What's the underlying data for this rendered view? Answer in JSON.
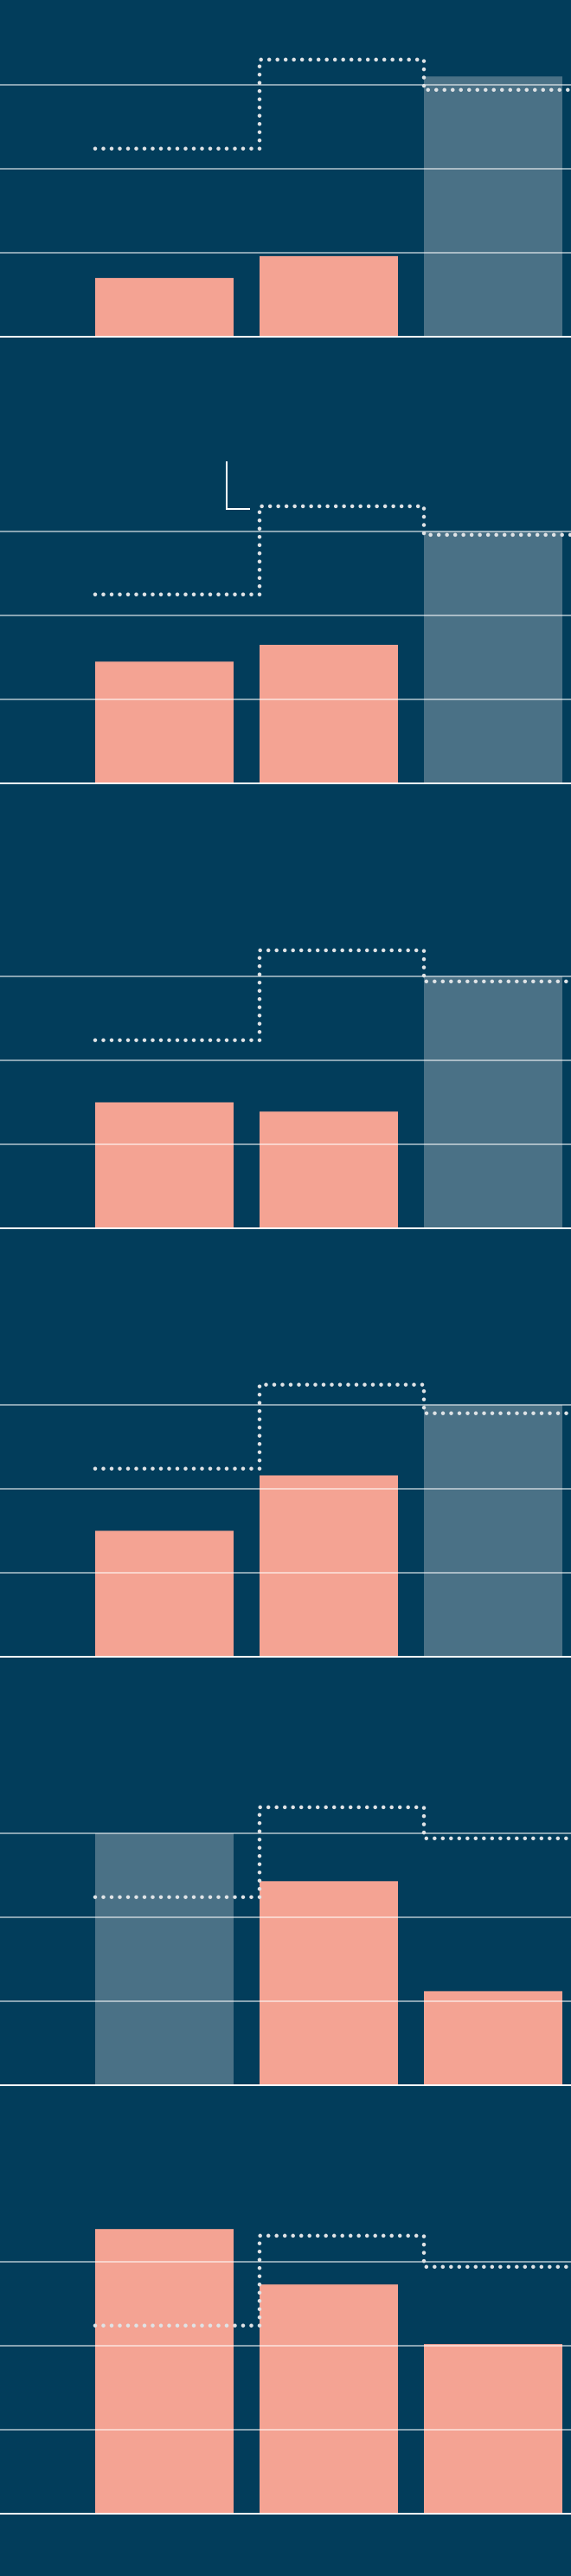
{
  "chart_data": [
    {
      "type": "bar",
      "categories": [
        null,
        null,
        null
      ],
      "ylim": [
        0,
        4
      ],
      "yticks": [
        0,
        1,
        2,
        3
      ],
      "grid": true,
      "series": [
        {
          "color": "#f4a393",
          "values": [
            0.7,
            0.96,
            null
          ]
        },
        {
          "color": "#4a7186",
          "values": [
            null,
            null,
            3.1
          ]
        },
        {
          "type": "step",
          "color": "#dfe3e6",
          "values": [
            2.24,
            3.3,
            2.94
          ]
        }
      ]
    },
    {
      "type": "bar",
      "categories": [
        null,
        null,
        null
      ],
      "ylim": [
        0,
        4
      ],
      "yticks": [
        0,
        1,
        2,
        3
      ],
      "grid": true,
      "series": [
        {
          "color": "#f4a393",
          "values": [
            1.45,
            1.65,
            null
          ]
        },
        {
          "color": "#4a7186",
          "values": [
            null,
            null,
            3.0
          ]
        },
        {
          "type": "step",
          "color": "#dfe3e6",
          "values": [
            2.25,
            3.3,
            2.96
          ]
        }
      ]
    },
    {
      "type": "bar",
      "categories": [
        null,
        null,
        null
      ],
      "ylim": [
        0,
        4
      ],
      "yticks": [
        0,
        1,
        2,
        3
      ],
      "grid": true,
      "series": [
        {
          "color": "#f4a393",
          "values": [
            1.5,
            1.39,
            null
          ]
        },
        {
          "color": "#4a7186",
          "values": [
            null,
            null,
            3.0
          ]
        },
        {
          "type": "step",
          "color": "#dfe3e6",
          "values": [
            2.24,
            3.31,
            2.94
          ]
        }
      ]
    },
    {
      "type": "bar",
      "categories": [
        null,
        null,
        null
      ],
      "ylim": [
        0,
        4
      ],
      "yticks": [
        0,
        1,
        2,
        3
      ],
      "grid": true,
      "series": [
        {
          "color": "#f4a393",
          "values": [
            1.5,
            2.16,
            null
          ]
        },
        {
          "color": "#4a7186",
          "values": [
            null,
            null,
            3.0
          ]
        },
        {
          "type": "step",
          "color": "#dfe3e6",
          "values": [
            2.24,
            3.24,
            2.9
          ]
        }
      ]
    },
    {
      "type": "bar",
      "categories": [
        null,
        null,
        null
      ],
      "ylim": [
        0,
        4
      ],
      "yticks": [
        0,
        1,
        2,
        3
      ],
      "grid": true,
      "series": [
        {
          "color": "#f4a393",
          "values": [
            null,
            2.43,
            1.12
          ]
        },
        {
          "color": "#4a7186",
          "values": [
            3.0,
            null,
            null
          ]
        },
        {
          "type": "step",
          "color": "#dfe3e6",
          "values": [
            2.24,
            3.31,
            2.94
          ]
        }
      ]
    },
    {
      "type": "bar",
      "categories": [
        null,
        null,
        null
      ],
      "ylim": [
        0,
        4
      ],
      "yticks": [
        0,
        1,
        2,
        3
      ],
      "grid": true,
      "series": [
        {
          "color": "#f4a393",
          "values": [
            3.39,
            2.73,
            2.02
          ]
        },
        {
          "type": "step",
          "color": "#dfe3e6",
          "values": [
            2.24,
            3.31,
            2.94
          ]
        }
      ]
    }
  ]
}
